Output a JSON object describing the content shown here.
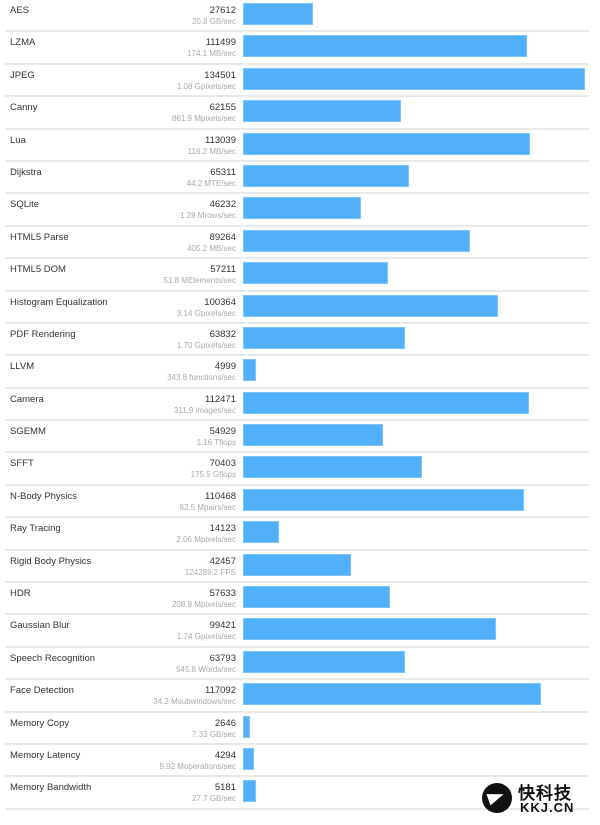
{
  "chart_data": {
    "type": "bar",
    "orientation": "horizontal",
    "title": "",
    "xlabel": "",
    "ylabel": "",
    "xlim": [
      0,
      134501
    ],
    "bar_color": "#52b0fb",
    "categories": [
      "AES",
      "LZMA",
      "JPEG",
      "Canny",
      "Lua",
      "Dijkstra",
      "SQLite",
      "HTML5 Parse",
      "HTML5 DOM",
      "Histogram Equalization",
      "PDF Rendering",
      "LLVM",
      "Camera",
      "SGEMM",
      "SFFT",
      "N-Body Physics",
      "Ray Tracing",
      "Rigid Body Physics",
      "HDR",
      "Gaussian Blur",
      "Speech Recognition",
      "Face Detection",
      "Memory Copy",
      "Memory Latency",
      "Memory Bandwidth"
    ],
    "values": [
      27612,
      111499,
      134501,
      62155,
      113039,
      65311,
      46232,
      89264,
      57211,
      100364,
      63832,
      4999,
      112471,
      54929,
      70403,
      110468,
      14123,
      42457,
      57633,
      99421,
      63793,
      117092,
      2646,
      4294,
      5181
    ],
    "units": [
      "20.8 GB/sec",
      "174.1 MB/sec",
      "1.08 Gpixels/sec",
      "861.9 Mpixels/sec",
      "116.2 MB/sec",
      "44.2 MTE/sec",
      "1.28 Mrows/sec",
      "405.2 MB/sec",
      "51.8 MElements/sec",
      "3.14 Gpixels/sec",
      "1.70 Gpixels/sec",
      "343.8 functions/sec",
      "311.9 images/sec",
      "1.16 Tflops",
      "175.5 Gflops",
      "82.5 Mpairs/sec",
      "2.06 Mpixels/sec",
      "124289.2 FPS",
      "208.9 Mpixels/sec",
      "1.74 Gpixels/sec",
      "545.8 Words/sec",
      "34.2 Msubwindows/sec",
      "7.33 GB/sec",
      "9.92 Moperations/sec",
      "27.7 GB/sec"
    ]
  },
  "rows": [
    {
      "name": "AES",
      "score": "27612",
      "unit": "20.8 GB/sec"
    },
    {
      "name": "LZMA",
      "score": "111499",
      "unit": "174.1 MB/sec"
    },
    {
      "name": "JPEG",
      "score": "134501",
      "unit": "1.08 Gpixels/sec"
    },
    {
      "name": "Canny",
      "score": "62155",
      "unit": "861.9 Mpixels/sec"
    },
    {
      "name": "Lua",
      "score": "113039",
      "unit": "116.2 MB/sec"
    },
    {
      "name": "Dijkstra",
      "score": "65311",
      "unit": "44.2 MTE/sec"
    },
    {
      "name": "SQLite",
      "score": "46232",
      "unit": "1.28 Mrows/sec"
    },
    {
      "name": "HTML5 Parse",
      "score": "89264",
      "unit": "405.2 MB/sec"
    },
    {
      "name": "HTML5 DOM",
      "score": "57211",
      "unit": "51.8 MElements/sec"
    },
    {
      "name": "Histogram Equalization",
      "score": "100364",
      "unit": "3.14 Gpixels/sec"
    },
    {
      "name": "PDF Rendering",
      "score": "63832",
      "unit": "1.70 Gpixels/sec"
    },
    {
      "name": "LLVM",
      "score": "4999",
      "unit": "343.8 functions/sec"
    },
    {
      "name": "Camera",
      "score": "112471",
      "unit": "311.9 images/sec"
    },
    {
      "name": "SGEMM",
      "score": "54929",
      "unit": "1.16 Tflops"
    },
    {
      "name": "SFFT",
      "score": "70403",
      "unit": "175.5 Gflops"
    },
    {
      "name": "N-Body Physics",
      "score": "110468",
      "unit": "82.5 Mpairs/sec"
    },
    {
      "name": "Ray Tracing",
      "score": "14123",
      "unit": "2.06 Mpixels/sec"
    },
    {
      "name": "Rigid Body Physics",
      "score": "42457",
      "unit": "124289.2 FPS"
    },
    {
      "name": "HDR",
      "score": "57633",
      "unit": "208.9 Mpixels/sec"
    },
    {
      "name": "Gaussian Blur",
      "score": "99421",
      "unit": "1.74 Gpixels/sec"
    },
    {
      "name": "Speech Recognition",
      "score": "63793",
      "unit": "545.8 Words/sec"
    },
    {
      "name": "Face Detection",
      "score": "117092",
      "unit": "34.2 Msubwindows/sec"
    },
    {
      "name": "Memory Copy",
      "score": "2646",
      "unit": "7.33 GB/sec"
    },
    {
      "name": "Memory Latency",
      "score": "4294",
      "unit": "9.92 Moperations/sec"
    },
    {
      "name": "Memory Bandwidth",
      "score": "5181",
      "unit": "27.7 GB/sec"
    }
  ],
  "watermark": {
    "cn": "快科技",
    "en": "KKJ.CN"
  }
}
